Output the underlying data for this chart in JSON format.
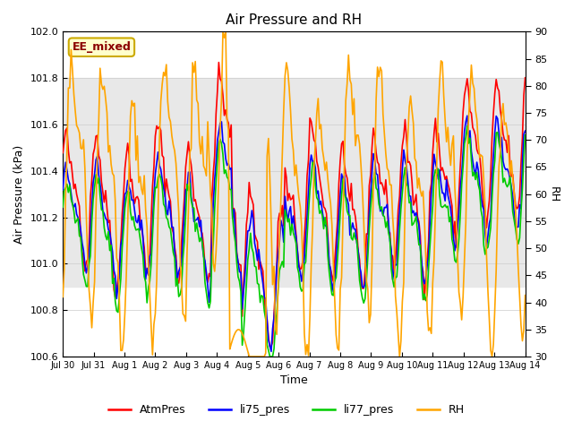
{
  "title": "Air Pressure and RH",
  "xlabel": "Time",
  "ylabel_left": "Air Pressure (kPa)",
  "ylabel_right": "RH",
  "ylim_left": [
    100.6,
    102.0
  ],
  "ylim_right": [
    30,
    90
  ],
  "yticks_left": [
    100.6,
    100.8,
    101.0,
    101.2,
    101.4,
    101.6,
    101.8,
    102.0
  ],
  "yticks_right": [
    30,
    35,
    40,
    45,
    50,
    55,
    60,
    65,
    70,
    75,
    80,
    85,
    90
  ],
  "xtick_labels": [
    "Jul 30",
    "Jul 31",
    "Aug 1",
    "Aug 2",
    "Aug 3",
    "Aug 4",
    "Aug 5",
    "Aug 6",
    "Aug 7",
    "Aug 8",
    "Aug 9",
    "Aug 10",
    "Aug 11",
    "Aug 12",
    "Aug 13",
    "Aug 14"
  ],
  "shade_ylim": [
    100.9,
    101.8
  ],
  "shade_color": "#e8e8e8",
  "annotation_text": "EE_mixed",
  "annotation_color": "#8b0000",
  "line_colors": {
    "AtmPres": "#ff0000",
    "li75_pres": "#0000ff",
    "li77_pres": "#00cc00",
    "RH": "#ffa500"
  },
  "line_widths": {
    "AtmPres": 1.2,
    "li75_pres": 1.2,
    "li77_pres": 1.2,
    "RH": 1.2
  },
  "bg_color": "#ffffff",
  "grid_color": "#cccccc",
  "n_points": 336
}
